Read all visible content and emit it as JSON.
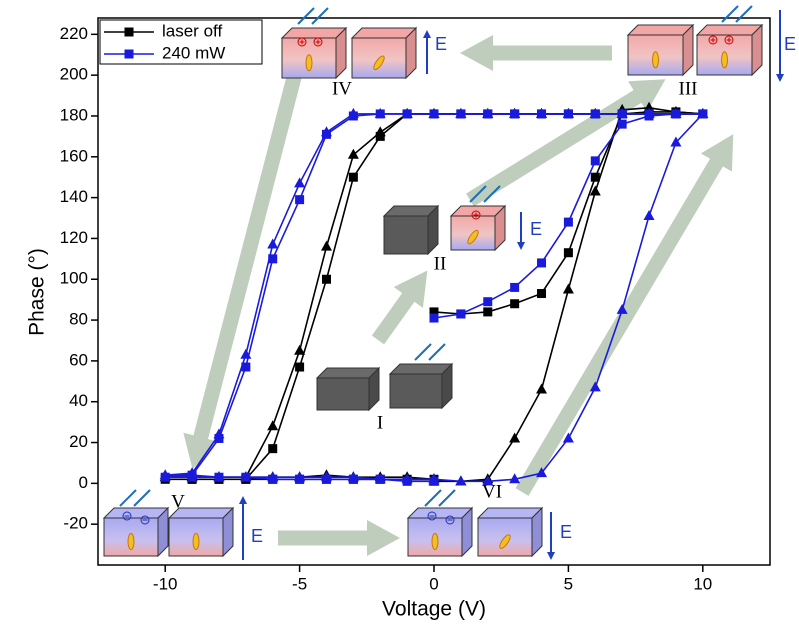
{
  "chart_data": {
    "type": "line",
    "x_label": "Voltage (V)",
    "y_label": "Phase (°)",
    "xlim": [
      -12.5,
      12.5
    ],
    "ylim": [
      -40,
      228
    ],
    "xticks": [
      -10,
      -5,
      0,
      5,
      10
    ],
    "yticks": [
      -20,
      0,
      20,
      40,
      60,
      80,
      100,
      120,
      140,
      160,
      180,
      200,
      220
    ],
    "legend": "top-left",
    "x": [
      0,
      1,
      2,
      3,
      4,
      5,
      6,
      7,
      8,
      9,
      10,
      9,
      8,
      7,
      6,
      5,
      4,
      3,
      2,
      1,
      0,
      -1,
      -2,
      -3,
      -4,
      -5,
      -6,
      -7,
      -8,
      -9,
      -10,
      -9,
      -8,
      -7,
      -6,
      -5,
      -4,
      -3,
      -2,
      -1,
      0
    ],
    "series": [
      {
        "name": "laser off",
        "color": "#000000",
        "branches": [
          {
            "marker": "square",
            "values": [
              84,
              83,
              84,
              88,
              93,
              113,
              150,
              181,
              182,
              182,
              181,
              181,
              181,
              181,
              181,
              181,
              181,
              181,
              181,
              181,
              181,
              181,
              170,
              150,
              100,
              57,
              17,
              2,
              2,
              2,
              2,
              2,
              2,
              2,
              2,
              2,
              2,
              2,
              2,
              2,
              2
            ]
          },
          {
            "marker": "triangle",
            "values": [
              1,
              1,
              2,
              22,
              46,
              95,
              143,
              183,
              184,
              182,
              181,
              181,
              181,
              181,
              181,
              181,
              181,
              181,
              181,
              181,
              181,
              181,
              172,
              161,
              116,
              65,
              28,
              3,
              3,
              3,
              3,
              3,
              3,
              3,
              3,
              3,
              4,
              3,
              3,
              3,
              2
            ]
          }
        ]
      },
      {
        "name": "240 mW",
        "color": "#1a1adc",
        "branches": [
          {
            "marker": "square",
            "values": [
              81,
              83,
              89,
              96,
              108,
              128,
              158,
              176,
              180,
              181,
              181,
              181,
              181,
              181,
              181,
              181,
              181,
              181,
              181,
              181,
              181,
              181,
              181,
              180,
              171,
              139,
              110,
              57,
              22,
              4,
              3,
              3,
              3,
              3,
              2,
              2,
              2,
              2,
              2,
              1,
              1
            ]
          },
          {
            "marker": "triangle",
            "values": [
              2,
              1,
              1,
              2,
              5,
              22,
              47,
              85,
              131,
              167,
              181,
              181,
              181,
              181,
              181,
              181,
              181,
              181,
              181,
              181,
              181,
              181,
              181,
              181,
              172,
              147,
              117,
              63,
              24,
              5,
              4,
              4,
              3,
              3,
              3,
              3,
              3,
              3,
              2,
              2,
              2
            ]
          }
        ]
      }
    ],
    "annotations": [
      "I",
      "II",
      "III",
      "IV",
      "V",
      "VI",
      "E",
      "E",
      "E",
      "E",
      "E"
    ]
  }
}
